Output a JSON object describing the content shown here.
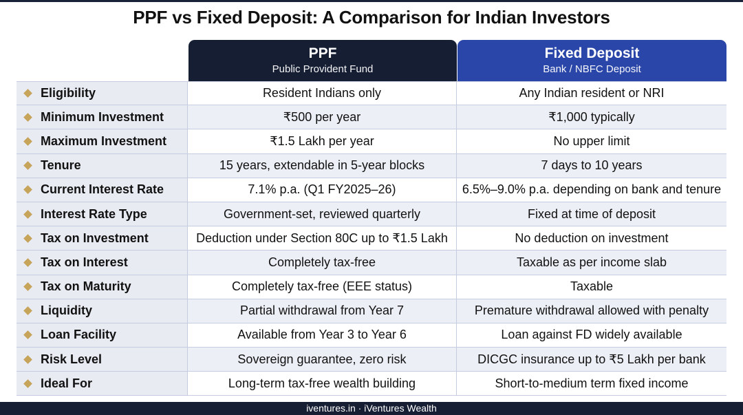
{
  "title": "PPF vs Fixed Deposit: A Comparison for Indian Investors",
  "columns": {
    "ppf": {
      "title": "PPF",
      "subtitle": "Public Provident Fund"
    },
    "fd": {
      "title": "Fixed Deposit",
      "subtitle": "Bank / NBFC Deposit"
    }
  },
  "rows": [
    {
      "label": "Eligibility",
      "ppf": "Resident Indians only",
      "fd": "Any Indian resident or NRI"
    },
    {
      "label": "Minimum Investment",
      "ppf": "₹500 per year",
      "fd": "₹1,000 typically"
    },
    {
      "label": "Maximum Investment",
      "ppf": "₹1.5 Lakh per year",
      "fd": "No upper limit"
    },
    {
      "label": "Tenure",
      "ppf": "15 years, extendable in 5-year blocks",
      "fd": "7 days to 10 years"
    },
    {
      "label": "Current Interest Rate",
      "ppf": "7.1% p.a. (Q1 FY2025–26)",
      "fd": "6.5%–9.0% p.a. depending on bank and tenure"
    },
    {
      "label": "Interest Rate Type",
      "ppf": "Government-set, reviewed quarterly",
      "fd": "Fixed at time of deposit"
    },
    {
      "label": "Tax on Investment",
      "ppf": "Deduction under Section 80C up to ₹1.5 Lakh",
      "fd": "No deduction on investment"
    },
    {
      "label": "Tax on Interest",
      "ppf": "Completely tax-free",
      "fd": "Taxable as per income slab"
    },
    {
      "label": "Tax on Maturity",
      "ppf": "Completely tax-free (EEE status)",
      "fd": "Taxable"
    },
    {
      "label": "Liquidity",
      "ppf": "Partial withdrawal from Year 7",
      "fd": "Premature withdrawal allowed with penalty"
    },
    {
      "label": "Loan Facility",
      "ppf": "Available from Year 3 to Year 6",
      "fd": "Loan against FD widely available"
    },
    {
      "label": "Risk Level",
      "ppf": "Sovereign guarantee, zero risk",
      "fd": "DICGC insurance up to ₹5 Lakh per bank"
    },
    {
      "label": "Ideal For",
      "ppf": "Long-term tax-free wealth building",
      "fd": "Short-to-medium term fixed income"
    }
  ],
  "footer": "iventures.in · iVentures Wealth",
  "colors": {
    "navy": "#161e34",
    "blue": "#2a46a8",
    "gold": "#c6a45a",
    "label_bg": "#e9ebf3"
  },
  "icons": {
    "row_marker": "diamond-icon"
  }
}
